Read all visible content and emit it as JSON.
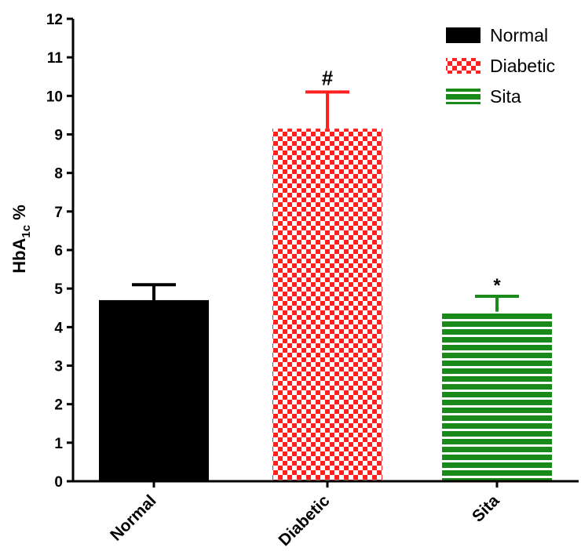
{
  "chart_data": {
    "type": "bar",
    "categories": [
      "Normal",
      "Diabetic",
      "Sita"
    ],
    "series": [
      {
        "name": "HbA1c %",
        "values": [
          4.7,
          9.15,
          4.4
        ],
        "error_upper": [
          0.4,
          0.95,
          0.4
        ],
        "colors": [
          "#000000",
          "#ff2020",
          "#1a8a1a"
        ],
        "patterns": [
          "solid",
          "checkerboard",
          "horizontal-stripes"
        ]
      }
    ],
    "annotations": [
      "",
      "#",
      "*"
    ],
    "ylabel_main": "HbA",
    "ylabel_sub": "1c",
    "ylabel_unit": " %",
    "xlabel": "",
    "ylim": [
      0,
      12
    ],
    "yticks": [
      "0",
      "1",
      "2",
      "3",
      "4",
      "5",
      "6",
      "7",
      "8",
      "9",
      "10",
      "11",
      "12"
    ],
    "grid": false,
    "legend": {
      "placement": "top-right",
      "entries": [
        "Normal",
        "Diabetic",
        "Sita"
      ]
    }
  }
}
